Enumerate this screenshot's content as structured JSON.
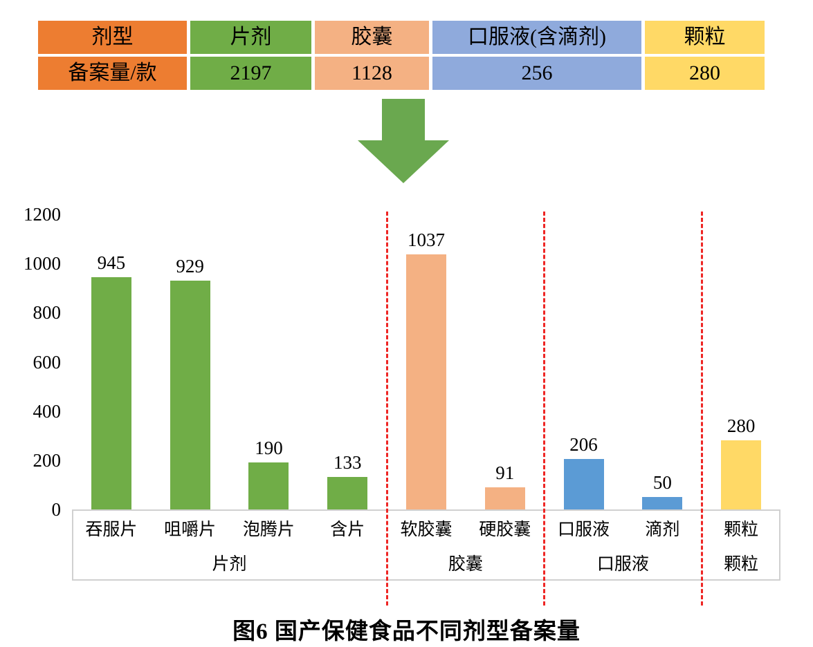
{
  "table": {
    "columns": [
      {
        "header": "剂型",
        "value": "备案量/款",
        "color": "#ed7d31"
      },
      {
        "header": "片剂",
        "value": "2197",
        "color": "#70ad47"
      },
      {
        "header": "胶囊",
        "value": "1128",
        "color": "#f4b183"
      },
      {
        "header": "口服液(含滴剂)",
        "value": "256",
        "color": "#8faadc"
      },
      {
        "header": "颗粒",
        "value": "280",
        "color": "#ffd966"
      }
    ]
  },
  "arrow": {
    "color": "#6aa84f",
    "icon": "down-arrow-icon"
  },
  "chart_data": {
    "type": "bar",
    "title": "图6 国产保健食品不同剂型备案量",
    "categories": [
      "吞服片",
      "咀嚼片",
      "泡腾片",
      "含片",
      "软胶囊",
      "硬胶囊",
      "口服液",
      "滴剂",
      "颗粒"
    ],
    "values": [
      945,
      929,
      190,
      133,
      1037,
      91,
      206,
      50,
      280
    ],
    "bar_colors": [
      "#70ad47",
      "#70ad47",
      "#70ad47",
      "#70ad47",
      "#f4b183",
      "#f4b183",
      "#5b9bd5",
      "#5b9bd5",
      "#ffd966"
    ],
    "groups": [
      {
        "label": "片剂",
        "from": 0,
        "to": 3
      },
      {
        "label": "胶囊",
        "from": 4,
        "to": 5
      },
      {
        "label": "口服液",
        "from": 6,
        "to": 7
      },
      {
        "label": "颗粒",
        "from": 8,
        "to": 8
      }
    ],
    "separators_after_index": [
      3,
      5,
      7
    ],
    "separator_color": "#ee2624",
    "yticks": [
      0,
      200,
      400,
      600,
      800,
      1000,
      1200
    ],
    "ylim": [
      0,
      1200
    ],
    "xlabel": "",
    "ylabel": "",
    "grid": false,
    "legend": false
  },
  "caption": "图6 国产保健食品不同剂型备案量"
}
